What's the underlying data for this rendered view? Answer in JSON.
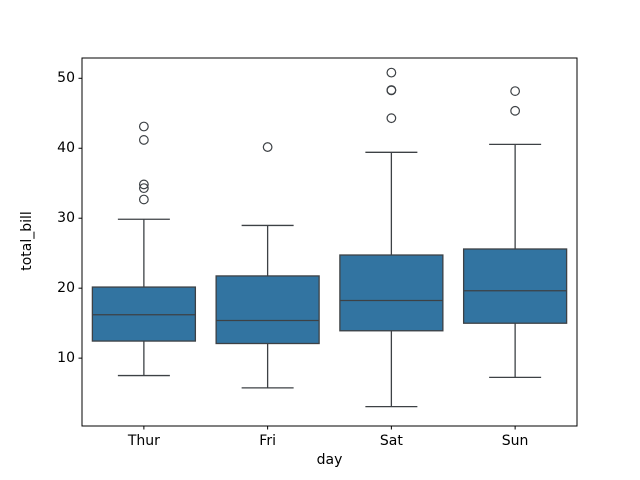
{
  "figure": {
    "background": "#ffffff",
    "text_color": "#000000"
  },
  "chart_data": {
    "type": "boxplot",
    "title": "",
    "xlabel": "day",
    "ylabel": "total_bill",
    "categories": [
      "Thur",
      "Fri",
      "Sat",
      "Sun"
    ],
    "yticks": [
      10,
      20,
      30,
      40,
      50
    ],
    "ylim": [
      0.3,
      52.9
    ],
    "grid": false,
    "legend": "none",
    "box_fill_color": "#3274a1",
    "box_line_color": "#3d4145",
    "spine_color": "#000000",
    "series": [
      {
        "label": "Thur",
        "whislo": 7.51,
        "q1": 12.44,
        "med": 16.2,
        "q3": 20.16,
        "whishi": 29.85,
        "outliers": [
          32.68,
          34.3,
          34.83,
          41.19,
          43.11
        ]
      },
      {
        "label": "Fri",
        "whislo": 5.75,
        "q1": 12.09,
        "med": 15.38,
        "q3": 21.75,
        "whishi": 28.97,
        "outliers": [
          40.17
        ]
      },
      {
        "label": "Sat",
        "whislo": 3.07,
        "q1": 13.91,
        "med": 18.24,
        "q3": 24.74,
        "whishi": 39.42,
        "outliers": [
          44.3,
          48.27,
          48.33,
          50.81
        ]
      },
      {
        "label": "Sun",
        "whislo": 7.25,
        "q1": 14.99,
        "med": 19.63,
        "q3": 25.6,
        "whishi": 40.55,
        "outliers": [
          45.35,
          48.17
        ]
      }
    ]
  }
}
